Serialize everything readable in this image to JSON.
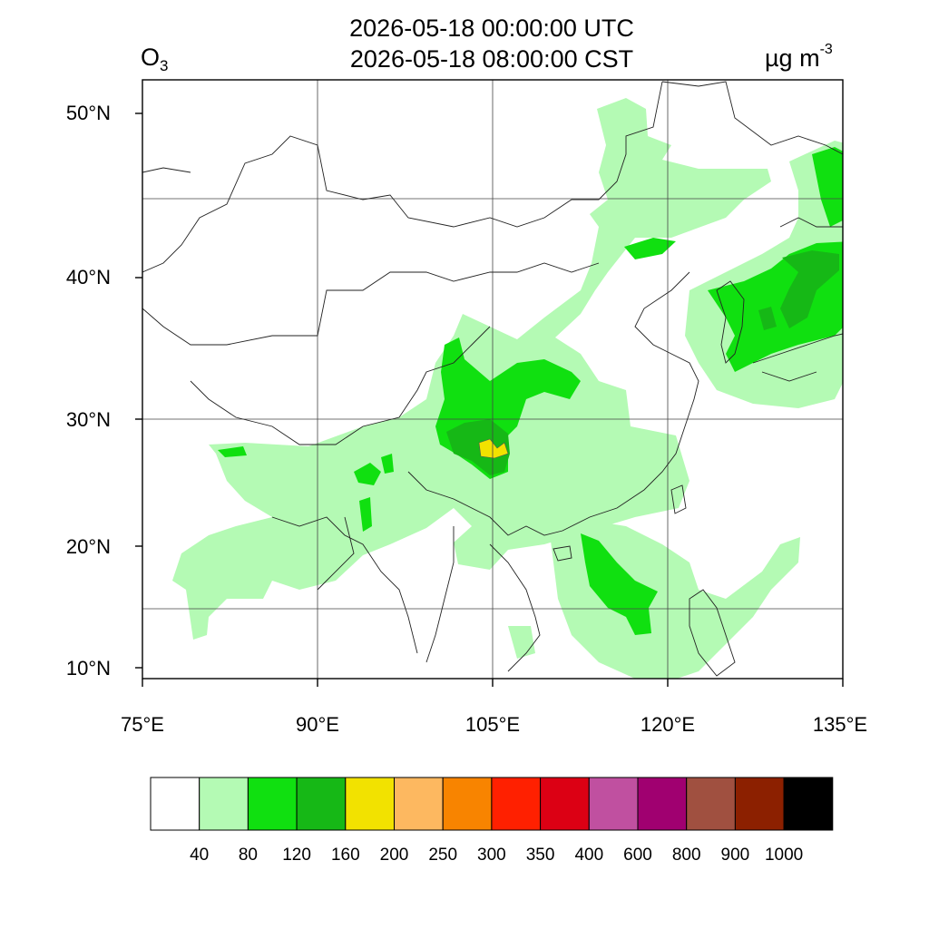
{
  "header": {
    "time_utc": "2026-05-18 00:00:00 UTC",
    "time_local": "2026-05-18 08:00:00 CST",
    "variable": "O",
    "variable_sub": "3",
    "unit": "µg m",
    "unit_sup": "-3"
  },
  "map": {
    "lat_labels": [
      "50°N",
      "40°N",
      "30°N",
      "20°N",
      "10°N"
    ],
    "lon_labels": [
      "75°E",
      "90°E",
      "105°E",
      "120°E",
      "135°E"
    ],
    "colors": {
      "light_green": "#b4fab4",
      "green": "#10e010",
      "dark_green": "#16b816",
      "yellow": "#f2e200"
    }
  },
  "colorbar": {
    "labels": [
      "40",
      "80",
      "120",
      "160",
      "200",
      "250",
      "300",
      "350",
      "400",
      "600",
      "800",
      "900",
      "1000"
    ],
    "colors": [
      "#ffffff",
      "#b4fab4",
      "#10e010",
      "#16b816",
      "#f2e200",
      "#fdb860",
      "#f88400",
      "#ff2000",
      "#dc0014",
      "#c050a0",
      "#a00070",
      "#a05040",
      "#8c2000",
      "#000000"
    ]
  }
}
